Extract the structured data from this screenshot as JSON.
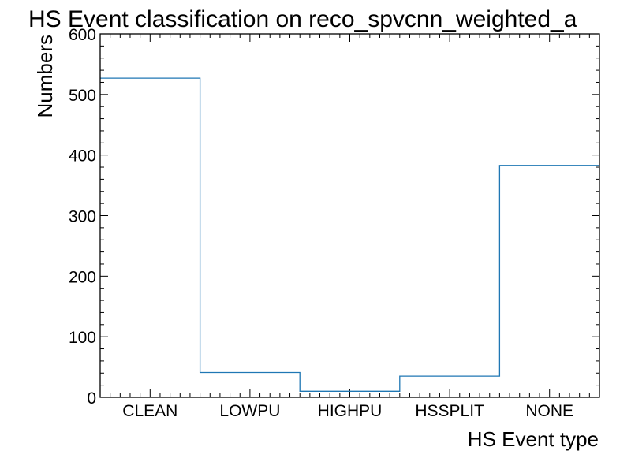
{
  "chart_data": {
    "type": "step-histogram",
    "title": "HS Event classification on reco_spvcnn_weighted_a",
    "xlabel": "HS Event type",
    "ylabel": "Numbers",
    "categories": [
      "CLEAN",
      "LOWPU",
      "HIGHPU",
      "HSSPLIT",
      "NONE"
    ],
    "values": [
      527,
      41,
      10,
      35,
      383
    ],
    "ylim": [
      0,
      600
    ],
    "yticks": [
      0,
      100,
      200,
      300,
      400,
      500,
      600
    ],
    "grid": false,
    "line_color": "#1f77b4"
  }
}
